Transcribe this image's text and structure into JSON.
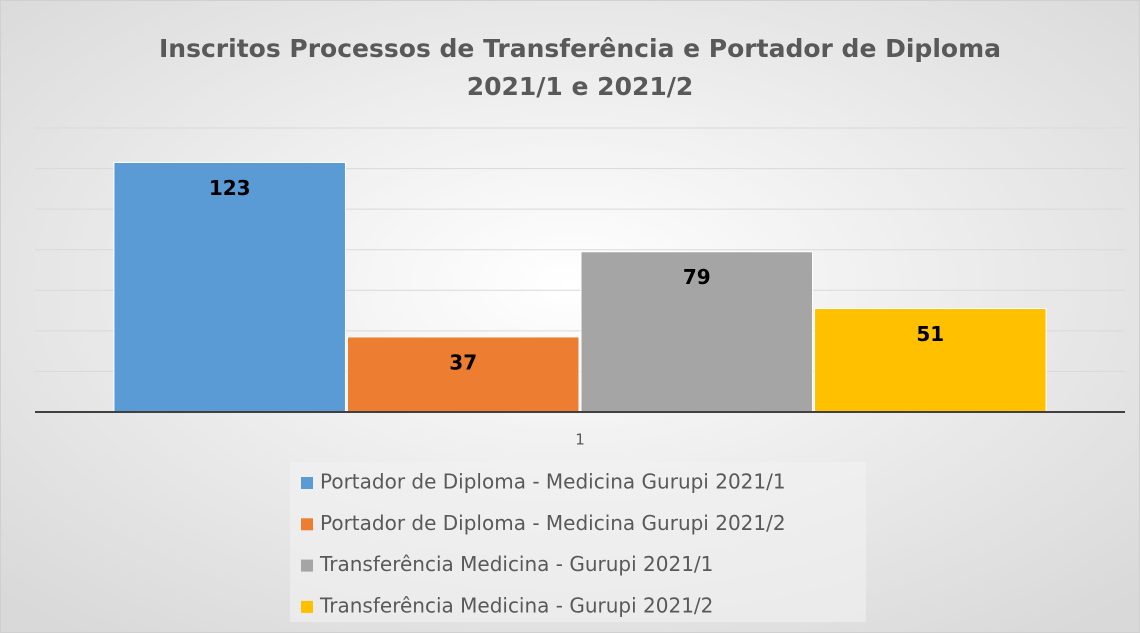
{
  "chart_data": {
    "type": "bar",
    "title": [
      "Inscritos Processos de Transferência e Portador de Diploma",
      "2021/1 e 2021/2"
    ],
    "categories": [
      "1"
    ],
    "series": [
      {
        "name": "Portador de Diploma - Medicina Gurupi 2021/1",
        "color": "#5b9bd5",
        "values": [
          123
        ]
      },
      {
        "name": "Portador de Diploma - Medicina Gurupi 2021/2",
        "color": "#ed7d31",
        "values": [
          37
        ]
      },
      {
        "name": "Transferência Medicina - Gurupi 2021/1",
        "color": "#a5a5a5",
        "values": [
          79
        ]
      },
      {
        "name": "Transferência Medicina - Gurupi 2021/2",
        "color": "#ffc000",
        "values": [
          51
        ]
      }
    ],
    "ylim": [
      0,
      140
    ],
    "yticks": [
      0,
      20,
      40,
      60,
      80,
      100,
      120,
      140
    ],
    "grid": true,
    "legend": "bottom"
  }
}
